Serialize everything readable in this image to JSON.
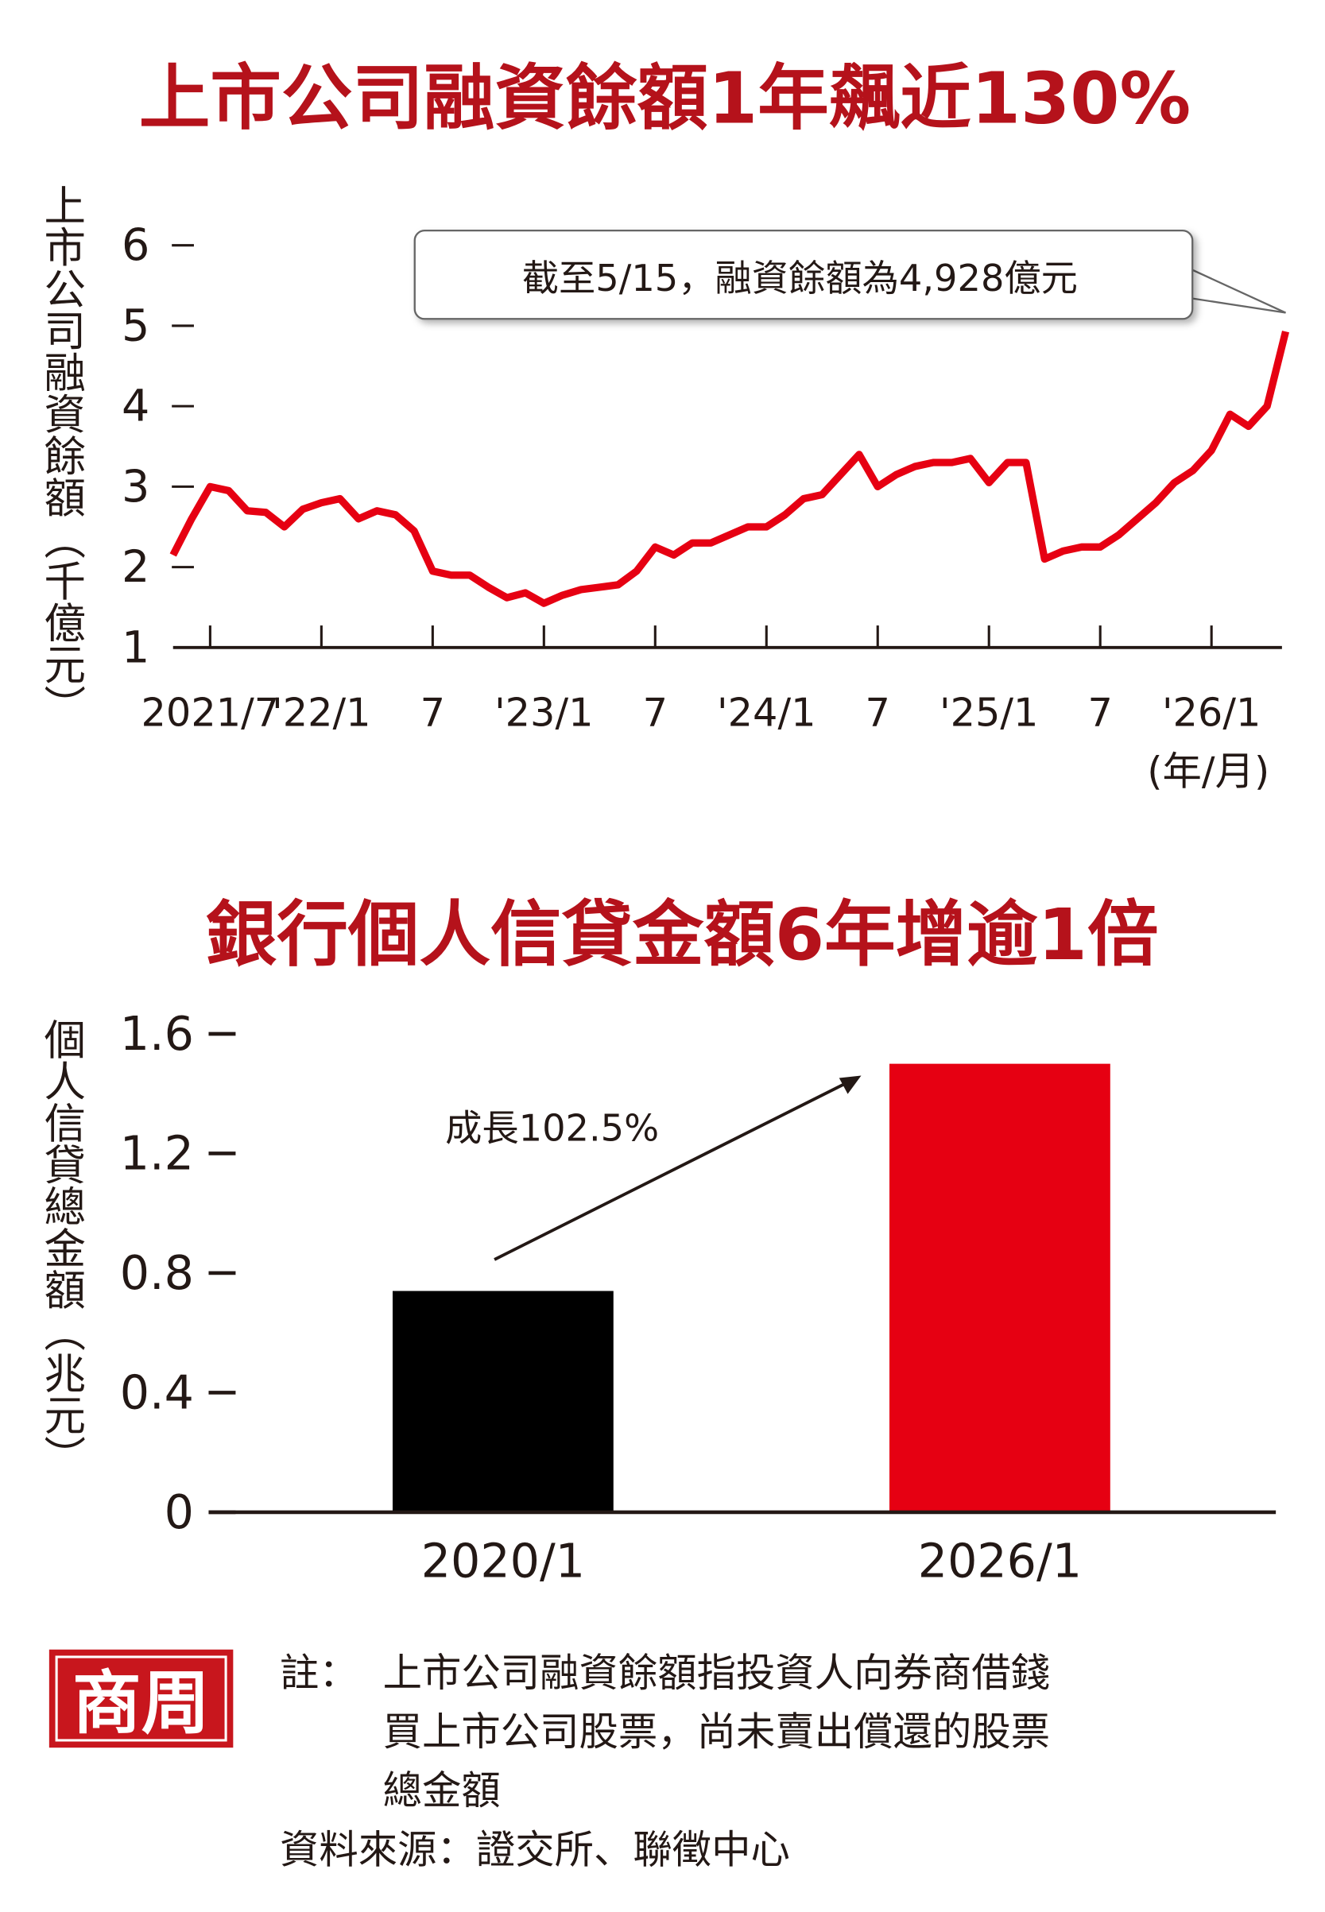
{
  "chart_data": [
    {
      "type": "line",
      "title": "上市公司融資餘額1年飆近130%",
      "ylabel": "上市公司融資餘額（千億元）",
      "xlabel": "(年/月)",
      "annotation": "截至5/15，融資餘額為4,928億元",
      "color": "#e60012",
      "x": [
        "2021-05",
        "2021-06",
        "2021-07",
        "2021-08",
        "2021-09",
        "2021-10",
        "2021-11",
        "2021-12",
        "2022-01",
        "2022-02",
        "2022-03",
        "2022-04",
        "2022-05",
        "2022-06",
        "2022-07",
        "2022-08",
        "2022-09",
        "2022-10",
        "2022-11",
        "2022-12",
        "2023-01",
        "2023-02",
        "2023-03",
        "2023-04",
        "2023-05",
        "2023-06",
        "2023-07",
        "2023-08",
        "2023-09",
        "2023-10",
        "2023-11",
        "2023-12",
        "2024-01",
        "2024-02",
        "2024-03",
        "2024-04",
        "2024-05",
        "2024-06",
        "2024-07",
        "2024-08",
        "2024-09",
        "2024-10",
        "2024-11",
        "2024-12",
        "2025-01",
        "2025-02",
        "2025-03",
        "2025-04",
        "2025-05",
        "2025-06",
        "2025-07",
        "2025-08",
        "2025-09",
        "2025-10",
        "2025-11",
        "2025-12",
        "2026-01",
        "2026-02",
        "2026-03",
        "2026-04",
        "2026-05"
      ],
      "values": [
        2.15,
        2.6,
        3.0,
        2.95,
        2.7,
        2.68,
        2.5,
        2.72,
        2.8,
        2.85,
        2.6,
        2.7,
        2.65,
        2.45,
        1.95,
        1.9,
        1.9,
        1.75,
        1.62,
        1.68,
        1.55,
        1.65,
        1.72,
        1.75,
        1.78,
        1.95,
        2.25,
        2.15,
        2.3,
        2.3,
        2.4,
        2.5,
        2.5,
        2.65,
        2.85,
        2.9,
        3.15,
        3.4,
        3.0,
        3.15,
        3.25,
        3.3,
        3.3,
        3.35,
        3.05,
        3.3,
        3.3,
        2.1,
        2.2,
        2.25,
        2.25,
        2.4,
        2.6,
        2.8,
        3.05,
        3.2,
        3.45,
        3.9,
        3.75,
        4.0,
        4.928
      ],
      "xticks": [
        {
          "value": "2021-07",
          "label": "2021/7"
        },
        {
          "value": "2022-01",
          "label": "'22/1"
        },
        {
          "value": "2022-07",
          "label": "7"
        },
        {
          "value": "2023-01",
          "label": "'23/1"
        },
        {
          "value": "2023-07",
          "label": "7"
        },
        {
          "value": "2024-01",
          "label": "'24/1"
        },
        {
          "value": "2024-07",
          "label": "7"
        },
        {
          "value": "2025-01",
          "label": "'25/1"
        },
        {
          "value": "2025-07",
          "label": "7"
        },
        {
          "value": "2026-01",
          "label": "'26/1"
        }
      ],
      "ylim": [
        1,
        6
      ],
      "yticks": [
        1,
        2,
        3,
        4,
        5,
        6
      ]
    },
    {
      "type": "bar",
      "title": "銀行個人信貸金額6年增逾1倍",
      "ylabel": "個人信貸總金額（兆元）",
      "annotation": "成長102.5%",
      "categories": [
        "2020/1",
        "2026/1"
      ],
      "values": [
        0.74,
        1.5
      ],
      "colors": [
        "#000000",
        "#e60012"
      ],
      "ylim": [
        0,
        1.6
      ],
      "yticks": [
        0,
        0.4,
        0.8,
        1.2,
        1.6
      ]
    }
  ],
  "footer": {
    "logo": "商周",
    "note_label": "註：",
    "note_lines": [
      "上市公司融資餘額指投資人向券商借錢",
      "買上市公司股票，尚未賣出償還的股票",
      "總金額"
    ],
    "source": "資料來源：證交所、聯徵中心"
  }
}
